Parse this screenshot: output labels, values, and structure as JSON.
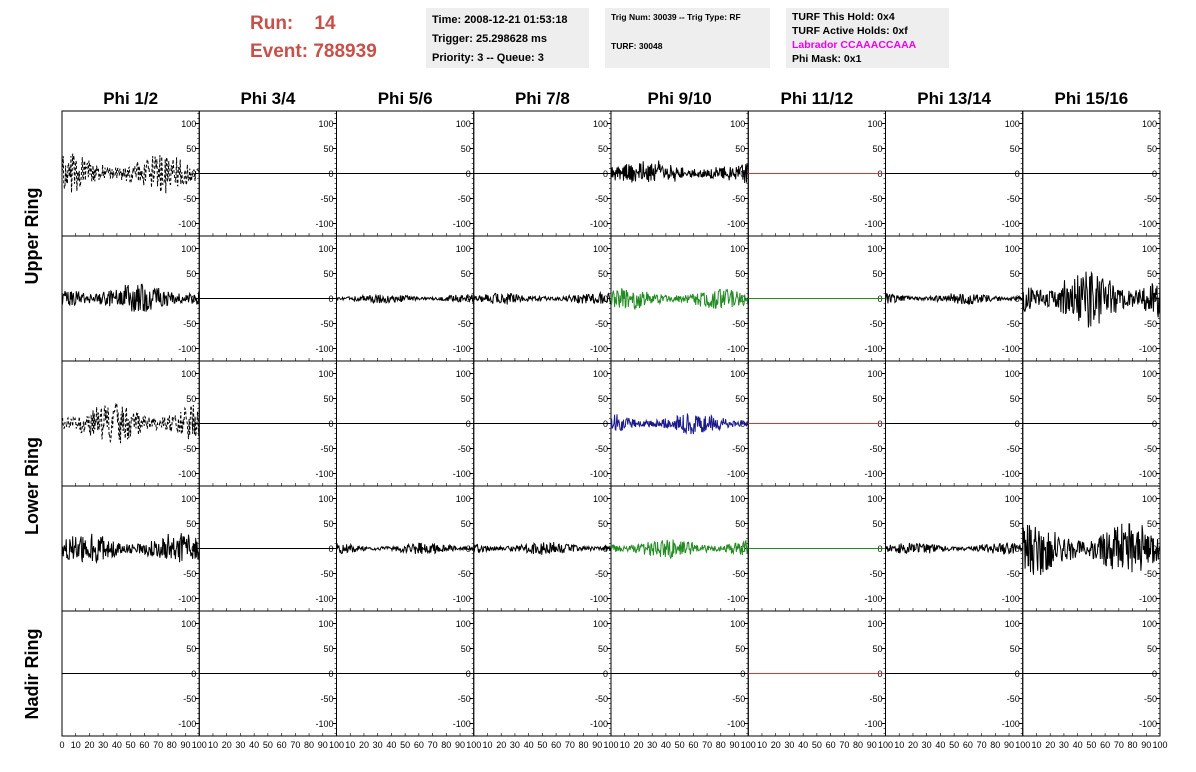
{
  "header": {
    "run_label": "Run:",
    "run_value": "14",
    "event_label": "Event:",
    "event_value": "788939",
    "time": "Time: 2008-12-21 01:53:18",
    "trigger": "Trigger: 25.298628 ms",
    "priority": "Priority: 3 -- Queue: 3",
    "trig_num": "Trig Num: 30039 -- Trig Type: RF",
    "turf": "TURF: 30048",
    "turf_this_hold": "TURF This Hold: 0x4",
    "turf_active_holds": "TURF Active Holds: 0xf",
    "labrador": "Labrador CCAAACCAAA",
    "phi_mask": "Phi Mask: 0x1"
  },
  "colors": {
    "header_red": "#c8504b",
    "magenta": "#ee00ee",
    "trace_black": "#000000",
    "trace_green": "#228b22",
    "trace_blue": "#1a1a8c",
    "trace_red": "#dd3333"
  },
  "chart_data": {
    "type": "line",
    "columns": [
      "Phi 1/2",
      "Phi 3/4",
      "Phi 5/6",
      "Phi 7/8",
      "Phi 9/10",
      "Phi 11/12",
      "Phi 13/14",
      "Phi 15/16"
    ],
    "row_labels": [
      "Upper Ring",
      "Lower Ring",
      "Nadir Ring"
    ],
    "xlim": [
      0,
      100
    ],
    "ylim": [
      -125,
      125
    ],
    "yticks": [
      -100,
      -50,
      0,
      50,
      100
    ],
    "xticks": [
      0,
      10,
      20,
      30,
      40,
      50,
      60,
      70,
      80,
      90,
      100
    ],
    "panels": [
      [
        {
          "color": "black",
          "style": "dashed",
          "amp": 40,
          "seed": 1
        },
        {
          "color": "black",
          "style": "flat"
        },
        {
          "color": "black",
          "style": "flat"
        },
        {
          "color": "black",
          "style": "flat"
        },
        {
          "color": "black",
          "style": "solid",
          "amp": 22,
          "seed": 5,
          "offset": 8
        },
        {
          "color": "red",
          "style": "flat"
        },
        {
          "color": "black",
          "style": "flat"
        },
        {
          "color": "black",
          "style": "flat"
        }
      ],
      [
        {
          "color": "black",
          "style": "solid",
          "amp": 32,
          "seed": 9
        },
        {
          "color": "black",
          "style": "flat"
        },
        {
          "color": "black",
          "style": "solid",
          "amp": 10,
          "seed": 11
        },
        {
          "color": "black",
          "style": "solid",
          "amp": 12,
          "seed": 12
        },
        {
          "color": "green",
          "style": "solid",
          "amp": 22,
          "seed": 13
        },
        {
          "color": "green",
          "style": "flat"
        },
        {
          "color": "black",
          "style": "solid",
          "amp": 12,
          "seed": 15
        },
        {
          "color": "black",
          "style": "solid",
          "amp": 60,
          "seed": 16
        }
      ],
      [
        {
          "color": "black",
          "style": "dashed",
          "amp": 42,
          "seed": 17
        },
        {
          "color": "black",
          "style": "flat"
        },
        {
          "color": "black",
          "style": "flat"
        },
        {
          "color": "black",
          "style": "flat"
        },
        {
          "color": "blue",
          "style": "solid",
          "amp": 22,
          "seed": 21
        },
        {
          "color": "red",
          "style": "flat"
        },
        {
          "color": "black",
          "style": "flat"
        },
        {
          "color": "black",
          "style": "flat"
        }
      ],
      [
        {
          "color": "black",
          "style": "solid",
          "amp": 32,
          "seed": 25
        },
        {
          "color": "black",
          "style": "flat"
        },
        {
          "color": "black",
          "style": "solid",
          "amp": 12,
          "seed": 27
        },
        {
          "color": "black",
          "style": "solid",
          "amp": 14,
          "seed": 28
        },
        {
          "color": "green",
          "style": "solid",
          "amp": 20,
          "seed": 29
        },
        {
          "color": "green",
          "style": "flat"
        },
        {
          "color": "black",
          "style": "solid",
          "amp": 12,
          "seed": 31
        },
        {
          "color": "black",
          "style": "solid",
          "amp": 55,
          "seed": 32
        }
      ],
      [
        {
          "color": "black",
          "style": "flat"
        },
        {
          "color": "black",
          "style": "flat"
        },
        {
          "color": "black",
          "style": "flat"
        },
        {
          "color": "black",
          "style": "flat"
        },
        {
          "color": "black",
          "style": "flat"
        },
        {
          "color": "red",
          "style": "flat"
        },
        {
          "color": "black",
          "style": "flat"
        },
        {
          "color": "black",
          "style": "flat"
        }
      ]
    ]
  }
}
